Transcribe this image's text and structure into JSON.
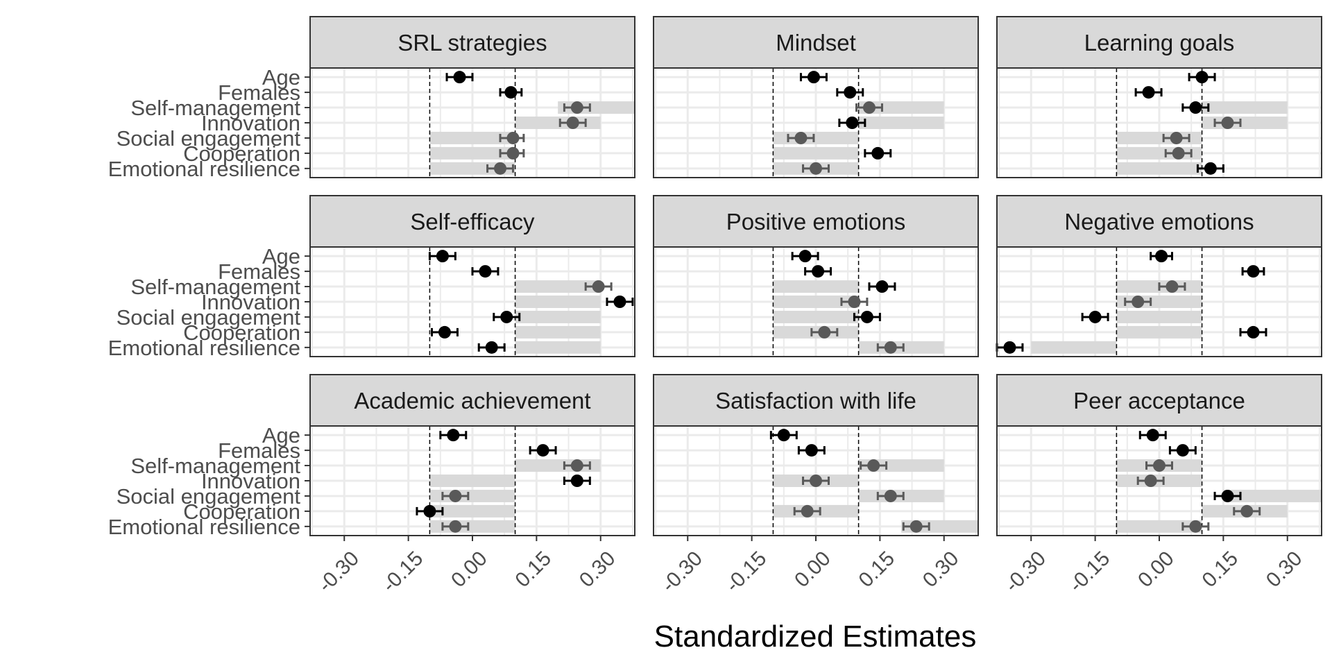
{
  "chart_data": {
    "type": "scatter",
    "xlabel": "Standardized Estimates",
    "ylabel": "",
    "xlim": [
      -0.38,
      0.38
    ],
    "x_ticks": [
      -0.3,
      -0.15,
      0.0,
      0.15,
      0.3
    ],
    "x_tick_labels": [
      "-0.30",
      "-0.15",
      "0.00",
      "0.15",
      "0.30"
    ],
    "reference_lines": [
      -0.1,
      0.1
    ],
    "grid": true,
    "categories": [
      "Age",
      "Females",
      "Self-management",
      "Innovation",
      "Social engagement",
      "Cooperation",
      "Emotional resilience"
    ],
    "panels": [
      {
        "title": "SRL strategies",
        "points": [
          {
            "label": "Age",
            "estimate": -0.03,
            "lo": -0.06,
            "hi": 0.0,
            "color": "#000000"
          },
          {
            "label": "Females",
            "estimate": 0.09,
            "lo": 0.065,
            "hi": 0.115,
            "color": "#000000"
          },
          {
            "label": "Self-management",
            "estimate": 0.245,
            "lo": 0.215,
            "hi": 0.275,
            "color": "#595959"
          },
          {
            "label": "Innovation",
            "estimate": 0.235,
            "lo": 0.205,
            "hi": 0.265,
            "color": "#595959"
          },
          {
            "label": "Social engagement",
            "estimate": 0.095,
            "lo": 0.065,
            "hi": 0.12,
            "color": "#595959"
          },
          {
            "label": "Cooperation",
            "estimate": 0.095,
            "lo": 0.065,
            "hi": 0.12,
            "color": "#595959"
          },
          {
            "label": "Emotional resilience",
            "estimate": 0.065,
            "lo": 0.035,
            "hi": 0.095,
            "color": "#595959"
          }
        ],
        "bands": [
          {
            "label": "Self-management",
            "from": 0.2,
            "to": 0.38
          },
          {
            "label": "Innovation",
            "from": 0.1,
            "to": 0.3
          },
          {
            "label": "Social engagement",
            "from": -0.1,
            "to": 0.1
          },
          {
            "label": "Cooperation",
            "from": -0.1,
            "to": 0.1
          },
          {
            "label": "Emotional resilience",
            "from": -0.1,
            "to": 0.1
          }
        ]
      },
      {
        "title": "Mindset",
        "points": [
          {
            "label": "Age",
            "estimate": -0.005,
            "lo": -0.035,
            "hi": 0.025,
            "color": "#000000"
          },
          {
            "label": "Females",
            "estimate": 0.08,
            "lo": 0.05,
            "hi": 0.11,
            "color": "#000000"
          },
          {
            "label": "Self-management",
            "estimate": 0.125,
            "lo": 0.095,
            "hi": 0.155,
            "color": "#595959"
          },
          {
            "label": "Innovation",
            "estimate": 0.085,
            "lo": 0.055,
            "hi": 0.115,
            "color": "#000000"
          },
          {
            "label": "Social engagement",
            "estimate": -0.035,
            "lo": -0.065,
            "hi": -0.005,
            "color": "#595959"
          },
          {
            "label": "Cooperation",
            "estimate": 0.145,
            "lo": 0.115,
            "hi": 0.175,
            "color": "#000000"
          },
          {
            "label": "Emotional resilience",
            "estimate": 0.0,
            "lo": -0.03,
            "hi": 0.03,
            "color": "#595959"
          }
        ],
        "bands": [
          {
            "label": "Self-management",
            "from": 0.1,
            "to": 0.3
          },
          {
            "label": "Innovation",
            "from": 0.1,
            "to": 0.3
          },
          {
            "label": "Social engagement",
            "from": -0.1,
            "to": 0.1
          },
          {
            "label": "Cooperation",
            "from": -0.1,
            "to": 0.1
          },
          {
            "label": "Emotional resilience",
            "from": -0.1,
            "to": 0.1
          }
        ]
      },
      {
        "title": "Learning goals",
        "points": [
          {
            "label": "Age",
            "estimate": 0.1,
            "lo": 0.07,
            "hi": 0.13,
            "color": "#000000"
          },
          {
            "label": "Females",
            "estimate": -0.025,
            "lo": -0.055,
            "hi": 0.005,
            "color": "#000000"
          },
          {
            "label": "Self-management",
            "estimate": 0.085,
            "lo": 0.055,
            "hi": 0.115,
            "color": "#000000"
          },
          {
            "label": "Innovation",
            "estimate": 0.16,
            "lo": 0.13,
            "hi": 0.19,
            "color": "#595959"
          },
          {
            "label": "Social engagement",
            "estimate": 0.04,
            "lo": 0.01,
            "hi": 0.07,
            "color": "#595959"
          },
          {
            "label": "Cooperation",
            "estimate": 0.045,
            "lo": 0.015,
            "hi": 0.075,
            "color": "#595959"
          },
          {
            "label": "Emotional resilience",
            "estimate": 0.12,
            "lo": 0.09,
            "hi": 0.15,
            "color": "#000000"
          }
        ],
        "bands": [
          {
            "label": "Self-management",
            "from": 0.1,
            "to": 0.3
          },
          {
            "label": "Innovation",
            "from": 0.1,
            "to": 0.3
          },
          {
            "label": "Social engagement",
            "from": -0.1,
            "to": 0.1
          },
          {
            "label": "Cooperation",
            "from": -0.1,
            "to": 0.1
          },
          {
            "label": "Emotional resilience",
            "from": -0.1,
            "to": 0.1
          }
        ]
      },
      {
        "title": "Self-efficacy",
        "points": [
          {
            "label": "Age",
            "estimate": -0.07,
            "lo": -0.1,
            "hi": -0.04,
            "color": "#000000"
          },
          {
            "label": "Females",
            "estimate": 0.03,
            "lo": 0.0,
            "hi": 0.06,
            "color": "#000000"
          },
          {
            "label": "Self-management",
            "estimate": 0.295,
            "lo": 0.265,
            "hi": 0.325,
            "color": "#595959"
          },
          {
            "label": "Innovation",
            "estimate": 0.345,
            "lo": 0.315,
            "hi": 0.375,
            "color": "#000000"
          },
          {
            "label": "Social engagement",
            "estimate": 0.08,
            "lo": 0.05,
            "hi": 0.11,
            "color": "#000000"
          },
          {
            "label": "Cooperation",
            "estimate": -0.065,
            "lo": -0.095,
            "hi": -0.035,
            "color": "#000000"
          },
          {
            "label": "Emotional resilience",
            "estimate": 0.045,
            "lo": 0.015,
            "hi": 0.075,
            "color": "#000000"
          }
        ],
        "bands": [
          {
            "label": "Self-management",
            "from": 0.1,
            "to": 0.3
          },
          {
            "label": "Innovation",
            "from": 0.1,
            "to": 0.3
          },
          {
            "label": "Social engagement",
            "from": 0.1,
            "to": 0.3
          },
          {
            "label": "Cooperation",
            "from": 0.1,
            "to": 0.3
          },
          {
            "label": "Emotional resilience",
            "from": 0.1,
            "to": 0.3
          }
        ]
      },
      {
        "title": "Positive emotions",
        "points": [
          {
            "label": "Age",
            "estimate": -0.025,
            "lo": -0.055,
            "hi": 0.005,
            "color": "#000000"
          },
          {
            "label": "Females",
            "estimate": 0.005,
            "lo": -0.025,
            "hi": 0.035,
            "color": "#000000"
          },
          {
            "label": "Self-management",
            "estimate": 0.155,
            "lo": 0.125,
            "hi": 0.185,
            "color": "#000000"
          },
          {
            "label": "Innovation",
            "estimate": 0.09,
            "lo": 0.06,
            "hi": 0.12,
            "color": "#595959"
          },
          {
            "label": "Social engagement",
            "estimate": 0.12,
            "lo": 0.09,
            "hi": 0.15,
            "color": "#000000"
          },
          {
            "label": "Cooperation",
            "estimate": 0.02,
            "lo": -0.01,
            "hi": 0.05,
            "color": "#595959"
          },
          {
            "label": "Emotional resilience",
            "estimate": 0.175,
            "lo": 0.145,
            "hi": 0.205,
            "color": "#595959"
          }
        ],
        "bands": [
          {
            "label": "Self-management",
            "from": -0.1,
            "to": 0.1
          },
          {
            "label": "Innovation",
            "from": -0.1,
            "to": 0.1
          },
          {
            "label": "Social engagement",
            "from": -0.1,
            "to": 0.1
          },
          {
            "label": "Cooperation",
            "from": -0.1,
            "to": 0.1
          },
          {
            "label": "Emotional resilience",
            "from": 0.1,
            "to": 0.3
          }
        ]
      },
      {
        "title": "Negative emotions",
        "points": [
          {
            "label": "Age",
            "estimate": 0.005,
            "lo": -0.02,
            "hi": 0.03,
            "color": "#000000"
          },
          {
            "label": "Females",
            "estimate": 0.22,
            "lo": 0.195,
            "hi": 0.245,
            "color": "#000000"
          },
          {
            "label": "Self-management",
            "estimate": 0.03,
            "lo": 0.0,
            "hi": 0.06,
            "color": "#595959"
          },
          {
            "label": "Innovation",
            "estimate": -0.05,
            "lo": -0.08,
            "hi": -0.02,
            "color": "#595959"
          },
          {
            "label": "Social engagement",
            "estimate": -0.15,
            "lo": -0.18,
            "hi": -0.12,
            "color": "#000000"
          },
          {
            "label": "Cooperation",
            "estimate": 0.22,
            "lo": 0.19,
            "hi": 0.25,
            "color": "#000000"
          },
          {
            "label": "Emotional resilience",
            "estimate": -0.35,
            "lo": -0.38,
            "hi": -0.32,
            "color": "#000000"
          }
        ],
        "bands": [
          {
            "label": "Self-management",
            "from": -0.1,
            "to": 0.1
          },
          {
            "label": "Innovation",
            "from": -0.1,
            "to": 0.1
          },
          {
            "label": "Social engagement",
            "from": -0.1,
            "to": 0.1
          },
          {
            "label": "Cooperation",
            "from": -0.1,
            "to": 0.1
          },
          {
            "label": "Emotional resilience",
            "from": -0.3,
            "to": -0.1
          }
        ]
      },
      {
        "title": "Academic achievement",
        "points": [
          {
            "label": "Age",
            "estimate": -0.045,
            "lo": -0.075,
            "hi": -0.015,
            "color": "#000000"
          },
          {
            "label": "Females",
            "estimate": 0.165,
            "lo": 0.135,
            "hi": 0.195,
            "color": "#000000"
          },
          {
            "label": "Self-management",
            "estimate": 0.245,
            "lo": 0.215,
            "hi": 0.275,
            "color": "#595959"
          },
          {
            "label": "Innovation",
            "estimate": 0.245,
            "lo": 0.215,
            "hi": 0.275,
            "color": "#000000"
          },
          {
            "label": "Social engagement",
            "estimate": -0.04,
            "lo": -0.07,
            "hi": -0.01,
            "color": "#595959"
          },
          {
            "label": "Cooperation",
            "estimate": -0.1,
            "lo": -0.13,
            "hi": -0.07,
            "color": "#000000"
          },
          {
            "label": "Emotional resilience",
            "estimate": -0.04,
            "lo": -0.07,
            "hi": -0.01,
            "color": "#595959"
          }
        ],
        "bands": [
          {
            "label": "Self-management",
            "from": 0.1,
            "to": 0.3
          },
          {
            "label": "Innovation",
            "from": -0.1,
            "to": 0.1
          },
          {
            "label": "Social engagement",
            "from": -0.1,
            "to": 0.1
          },
          {
            "label": "Cooperation",
            "from": -0.1,
            "to": 0.1
          },
          {
            "label": "Emotional resilience",
            "from": -0.1,
            "to": 0.1
          }
        ]
      },
      {
        "title": "Satisfaction with life",
        "points": [
          {
            "label": "Age",
            "estimate": -0.075,
            "lo": -0.105,
            "hi": -0.045,
            "color": "#000000"
          },
          {
            "label": "Females",
            "estimate": -0.01,
            "lo": -0.04,
            "hi": 0.02,
            "color": "#000000"
          },
          {
            "label": "Self-management",
            "estimate": 0.135,
            "lo": 0.105,
            "hi": 0.165,
            "color": "#595959"
          },
          {
            "label": "Innovation",
            "estimate": 0.0,
            "lo": -0.03,
            "hi": 0.03,
            "color": "#595959"
          },
          {
            "label": "Social engagement",
            "estimate": 0.175,
            "lo": 0.145,
            "hi": 0.205,
            "color": "#595959"
          },
          {
            "label": "Cooperation",
            "estimate": -0.02,
            "lo": -0.05,
            "hi": 0.01,
            "color": "#595959"
          },
          {
            "label": "Emotional resilience",
            "estimate": 0.235,
            "lo": 0.205,
            "hi": 0.265,
            "color": "#595959"
          }
        ],
        "bands": [
          {
            "label": "Self-management",
            "from": 0.1,
            "to": 0.3
          },
          {
            "label": "Innovation",
            "from": -0.1,
            "to": 0.1
          },
          {
            "label": "Social engagement",
            "from": 0.1,
            "to": 0.3
          },
          {
            "label": "Cooperation",
            "from": -0.1,
            "to": 0.1
          },
          {
            "label": "Emotional resilience",
            "from": 0.2,
            "to": 0.38
          }
        ]
      },
      {
        "title": "Peer acceptance",
        "points": [
          {
            "label": "Age",
            "estimate": -0.015,
            "lo": -0.045,
            "hi": 0.015,
            "color": "#000000"
          },
          {
            "label": "Females",
            "estimate": 0.055,
            "lo": 0.025,
            "hi": 0.085,
            "color": "#000000"
          },
          {
            "label": "Self-management",
            "estimate": 0.0,
            "lo": -0.03,
            "hi": 0.03,
            "color": "#595959"
          },
          {
            "label": "Innovation",
            "estimate": -0.02,
            "lo": -0.05,
            "hi": 0.01,
            "color": "#595959"
          },
          {
            "label": "Social engagement",
            "estimate": 0.16,
            "lo": 0.13,
            "hi": 0.19,
            "color": "#000000"
          },
          {
            "label": "Cooperation",
            "estimate": 0.205,
            "lo": 0.175,
            "hi": 0.235,
            "color": "#595959"
          },
          {
            "label": "Emotional resilience",
            "estimate": 0.085,
            "lo": 0.055,
            "hi": 0.115,
            "color": "#595959"
          }
        ],
        "bands": [
          {
            "label": "Self-management",
            "from": -0.1,
            "to": 0.1
          },
          {
            "label": "Innovation",
            "from": -0.1,
            "to": 0.1
          },
          {
            "label": "Social engagement",
            "from": 0.15,
            "to": 0.38
          },
          {
            "label": "Cooperation",
            "from": 0.1,
            "to": 0.3
          },
          {
            "label": "Emotional resilience",
            "from": -0.1,
            "to": 0.1
          }
        ]
      }
    ],
    "colors": {
      "significant_point": "#000000",
      "other_point": "#595959",
      "band": "#d9d9d9",
      "strip_fill": "#d9d9d9",
      "grid": "#ebebeb",
      "panel_border": "#333333"
    }
  }
}
